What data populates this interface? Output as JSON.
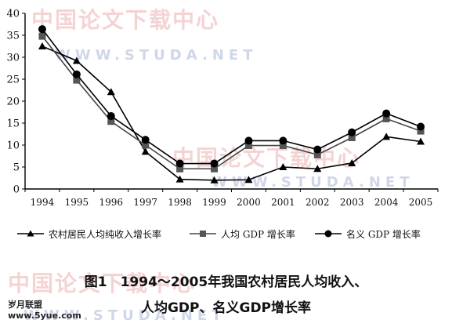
{
  "chart_data": {
    "type": "line",
    "categories": [
      "1994",
      "1995",
      "1996",
      "1997",
      "1998",
      "1999",
      "2000",
      "2001",
      "2002",
      "2003",
      "2004",
      "2005"
    ],
    "ylim": [
      0,
      40
    ],
    "yticks": [
      0,
      5,
      10,
      15,
      20,
      25,
      30,
      35,
      40
    ],
    "grid": false,
    "legend_position": "bottom",
    "series": [
      {
        "name": "农村居民人均纯收入增长率",
        "marker": "triangle",
        "values": [
          32.5,
          29.2,
          22.1,
          8.5,
          2.2,
          2.0,
          2.1,
          5.0,
          4.6,
          5.9,
          11.9,
          10.8
        ]
      },
      {
        "name": "人均GDP增长率",
        "marker": "square",
        "values": [
          34.8,
          24.8,
          15.4,
          10.0,
          4.6,
          4.6,
          9.9,
          9.9,
          7.8,
          11.7,
          16.0,
          13.2
        ]
      },
      {
        "name": "名义GDP增长率",
        "marker": "circle",
        "values": [
          36.4,
          26.1,
          16.6,
          11.2,
          5.8,
          5.8,
          11.0,
          11.0,
          9.0,
          12.9,
          17.2,
          14.2
        ]
      }
    ]
  },
  "legend": {
    "item1": "农村居民人均纯收入增长率",
    "item2": "人均 GDP 增长率",
    "item3": "名义 GDP 增长率"
  },
  "caption": {
    "line1": "图1　1994～2005年我国农村居民人均收入、",
    "line2": "人均GDP、名义GDP增长率"
  },
  "watermark": {
    "cn": "中国论文下载中心",
    "en": "WWW.STUDA.NET"
  },
  "site": {
    "name": "岁月联盟",
    "url": "www.5yue.com"
  }
}
